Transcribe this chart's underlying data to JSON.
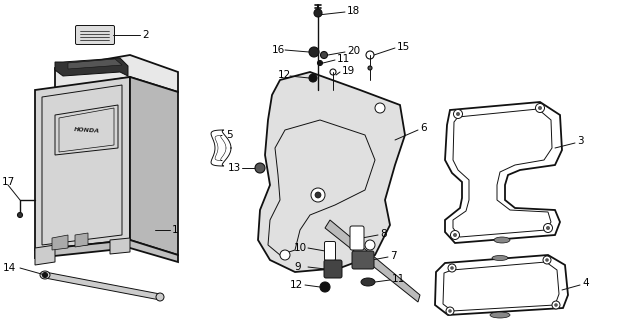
{
  "bg_color": "#ffffff",
  "line_color": "#111111",
  "label_color": "#000000",
  "lw_main": 1.3,
  "lw_thin": 0.7,
  "fs": 7.5
}
